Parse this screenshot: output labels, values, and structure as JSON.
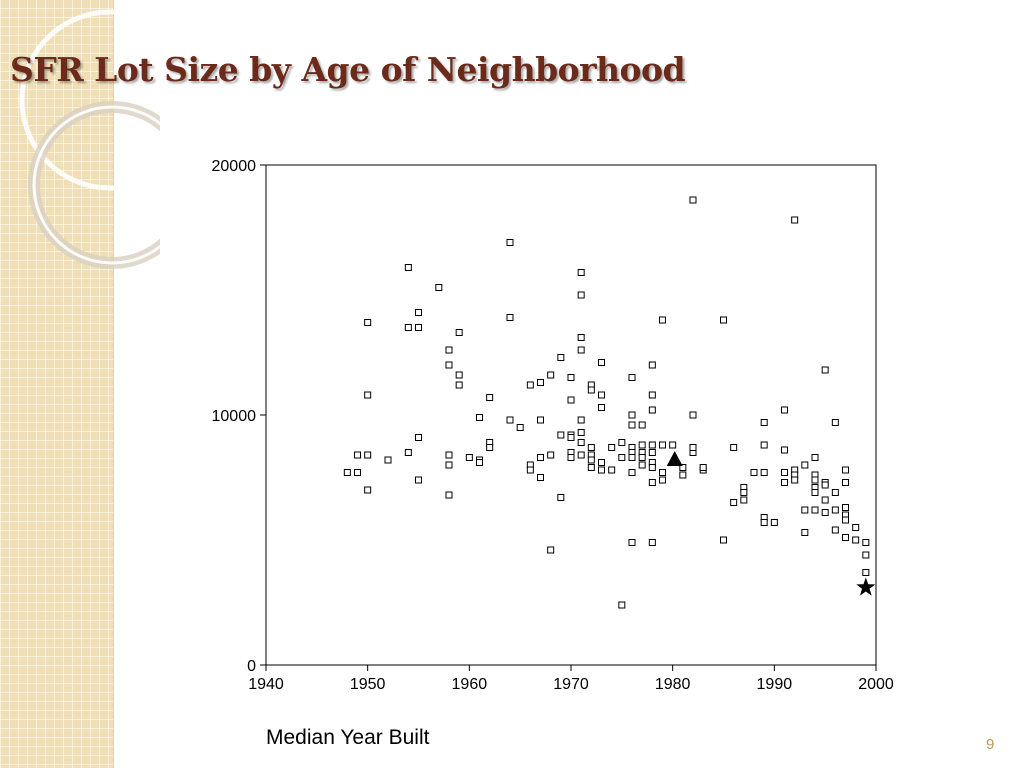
{
  "slide": {
    "title": "SFR Lot Size by Age of Neighborhood",
    "page_number": "9"
  },
  "colors": {
    "title": "#6b2a1a",
    "side_band": "#f0dfb6",
    "page_number": "#b89a55"
  },
  "chart_data": {
    "type": "scatter",
    "title": "",
    "xlabel": "Median Year Built",
    "ylabel": "",
    "xlim": [
      1940,
      2000
    ],
    "ylim": [
      0,
      20000
    ],
    "x_ticks": [
      1940,
      1950,
      1960,
      1970,
      1980,
      1990,
      2000
    ],
    "y_ticks": [
      0,
      10000,
      20000
    ],
    "grid": false,
    "legend": "none",
    "series": [
      {
        "marker": "open-square",
        "points": [
          [
            1948,
            7700
          ],
          [
            1949,
            7700
          ],
          [
            1949,
            8400
          ],
          [
            1950,
            8400
          ],
          [
            1950,
            7000
          ],
          [
            1950,
            10800
          ],
          [
            1950,
            13700
          ],
          [
            1952,
            8200
          ],
          [
            1954,
            8500
          ],
          [
            1954,
            13500
          ],
          [
            1954,
            15900
          ],
          [
            1955,
            14100
          ],
          [
            1955,
            13500
          ],
          [
            1955,
            9100
          ],
          [
            1955,
            7400
          ],
          [
            1957,
            15100
          ],
          [
            1958,
            12600
          ],
          [
            1958,
            12000
          ],
          [
            1958,
            8400
          ],
          [
            1958,
            8000
          ],
          [
            1958,
            6800
          ],
          [
            1959,
            13300
          ],
          [
            1959,
            11600
          ],
          [
            1959,
            11200
          ],
          [
            1960,
            8300
          ],
          [
            1961,
            9900
          ],
          [
            1961,
            8200
          ],
          [
            1961,
            8100
          ],
          [
            1962,
            10700
          ],
          [
            1962,
            8900
          ],
          [
            1962,
            8700
          ],
          [
            1964,
            16900
          ],
          [
            1964,
            13900
          ],
          [
            1964,
            9800
          ],
          [
            1965,
            9500
          ],
          [
            1966,
            11200
          ],
          [
            1966,
            8000
          ],
          [
            1966,
            7800
          ],
          [
            1967,
            11300
          ],
          [
            1967,
            9800
          ],
          [
            1967,
            8300
          ],
          [
            1967,
            7500
          ],
          [
            1968,
            11600
          ],
          [
            1968,
            8400
          ],
          [
            1968,
            4600
          ],
          [
            1969,
            12300
          ],
          [
            1969,
            9200
          ],
          [
            1969,
            6700
          ],
          [
            1970,
            11500
          ],
          [
            1970,
            10600
          ],
          [
            1970,
            9200
          ],
          [
            1970,
            9100
          ],
          [
            1970,
            8500
          ],
          [
            1970,
            8300
          ],
          [
            1971,
            15700
          ],
          [
            1971,
            14800
          ],
          [
            1971,
            13100
          ],
          [
            1971,
            12600
          ],
          [
            1971,
            9800
          ],
          [
            1971,
            9300
          ],
          [
            1971,
            8900
          ],
          [
            1971,
            8400
          ],
          [
            1972,
            11200
          ],
          [
            1972,
            11000
          ],
          [
            1972,
            8700
          ],
          [
            1972,
            8400
          ],
          [
            1972,
            8200
          ],
          [
            1972,
            7900
          ],
          [
            1973,
            12100
          ],
          [
            1973,
            10800
          ],
          [
            1973,
            10300
          ],
          [
            1973,
            8100
          ],
          [
            1973,
            7800
          ],
          [
            1974,
            8700
          ],
          [
            1974,
            7800
          ],
          [
            1975,
            8900
          ],
          [
            1975,
            8300
          ],
          [
            1975,
            2400
          ],
          [
            1976,
            11500
          ],
          [
            1976,
            10000
          ],
          [
            1976,
            9600
          ],
          [
            1976,
            8700
          ],
          [
            1976,
            8500
          ],
          [
            1976,
            8300
          ],
          [
            1976,
            7700
          ],
          [
            1976,
            4900
          ],
          [
            1977,
            9600
          ],
          [
            1977,
            8800
          ],
          [
            1977,
            8500
          ],
          [
            1977,
            8300
          ],
          [
            1977,
            8000
          ],
          [
            1978,
            12000
          ],
          [
            1978,
            10800
          ],
          [
            1978,
            10200
          ],
          [
            1978,
            8800
          ],
          [
            1978,
            8500
          ],
          [
            1978,
            8100
          ],
          [
            1978,
            7900
          ],
          [
            1978,
            7300
          ],
          [
            1978,
            4900
          ],
          [
            1979,
            13800
          ],
          [
            1979,
            8800
          ],
          [
            1979,
            7700
          ],
          [
            1979,
            7400
          ],
          [
            1980,
            8800
          ],
          [
            1981,
            7600
          ],
          [
            1981,
            7900
          ],
          [
            1982,
            18600
          ],
          [
            1982,
            10000
          ],
          [
            1982,
            8500
          ],
          [
            1982,
            8700
          ],
          [
            1983,
            7800
          ],
          [
            1983,
            7900
          ],
          [
            1985,
            13800
          ],
          [
            1985,
            5000
          ],
          [
            1986,
            8700
          ],
          [
            1986,
            6500
          ],
          [
            1987,
            7100
          ],
          [
            1987,
            6900
          ],
          [
            1987,
            6600
          ],
          [
            1988,
            7700
          ],
          [
            1989,
            9700
          ],
          [
            1989,
            8800
          ],
          [
            1989,
            7700
          ],
          [
            1989,
            5900
          ],
          [
            1989,
            5700
          ],
          [
            1990,
            5700
          ],
          [
            1991,
            10200
          ],
          [
            1991,
            8600
          ],
          [
            1991,
            7700
          ],
          [
            1991,
            7300
          ],
          [
            1992,
            17800
          ],
          [
            1992,
            7800
          ],
          [
            1992,
            7600
          ],
          [
            1992,
            7400
          ],
          [
            1993,
            8000
          ],
          [
            1993,
            6200
          ],
          [
            1993,
            5300
          ],
          [
            1994,
            8300
          ],
          [
            1994,
            7600
          ],
          [
            1994,
            7400
          ],
          [
            1994,
            7100
          ],
          [
            1994,
            6900
          ],
          [
            1994,
            6200
          ],
          [
            1995,
            11800
          ],
          [
            1995,
            7300
          ],
          [
            1995,
            7200
          ],
          [
            1995,
            6600
          ],
          [
            1995,
            6100
          ],
          [
            1996,
            9700
          ],
          [
            1996,
            6900
          ],
          [
            1996,
            6200
          ],
          [
            1996,
            5400
          ],
          [
            1997,
            7800
          ],
          [
            1997,
            7300
          ],
          [
            1997,
            6300
          ],
          [
            1997,
            6000
          ],
          [
            1997,
            5800
          ],
          [
            1997,
            5100
          ],
          [
            1998,
            5500
          ],
          [
            1998,
            5000
          ],
          [
            1999,
            4900
          ],
          [
            1999,
            4400
          ],
          [
            1999,
            3700
          ]
        ]
      },
      {
        "marker": "filled-triangle",
        "points": [
          [
            1980.2,
            8200
          ]
        ]
      },
      {
        "marker": "filled-star",
        "points": [
          [
            1999,
            3100
          ]
        ]
      }
    ]
  }
}
